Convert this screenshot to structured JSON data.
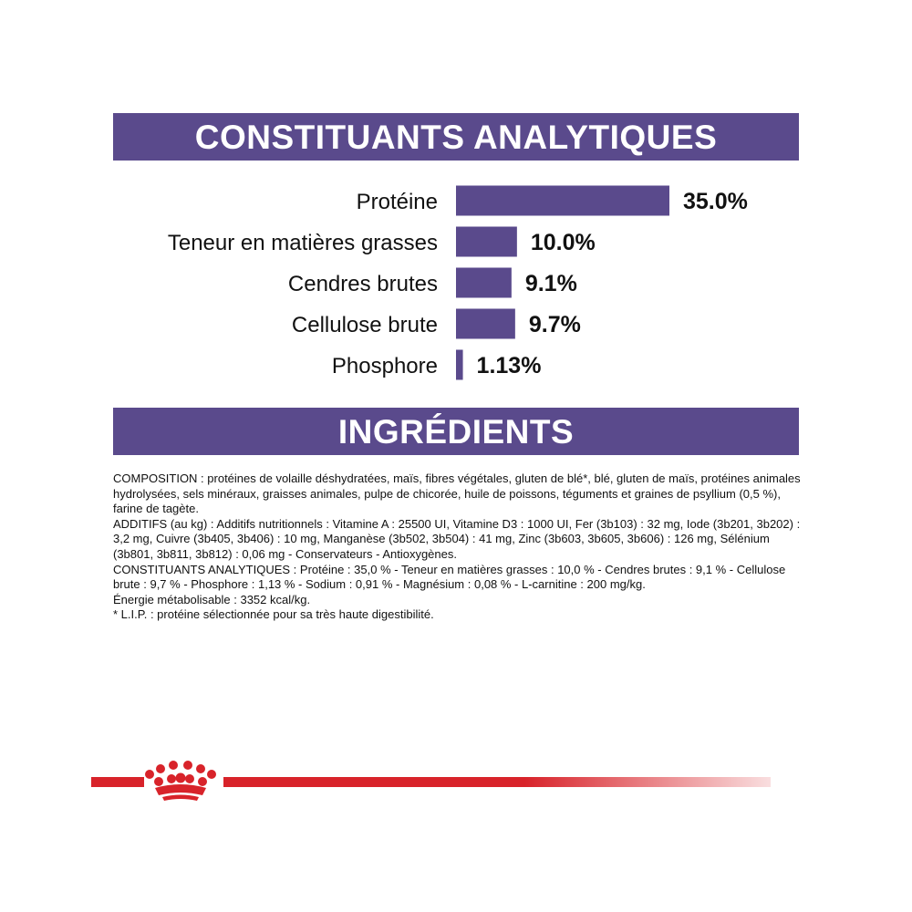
{
  "analytics_banner": "CONSTITUANTS ANALYTIQUES",
  "ingredients_banner": "INGRÉDIENTS",
  "colors": {
    "accent": "#5a4a8c",
    "brand_red": "#d8232a"
  },
  "chart_data": {
    "type": "bar",
    "orientation": "horizontal",
    "title": "",
    "xlabel": "",
    "ylabel": "",
    "categories": [
      "Protéine",
      "Teneur en matières grasses",
      "Cendres brutes",
      "Cellulose brute",
      "Phosphore"
    ],
    "values": [
      35.0,
      10.0,
      9.1,
      9.7,
      1.13
    ],
    "value_labels": [
      "35.0%",
      "10.0%",
      "9.1%",
      "9.7%",
      "1.13%"
    ],
    "xlim": [
      0,
      35
    ],
    "grid": false,
    "legend": "none"
  },
  "ingredients": {
    "paragraphs": [
      "COMPOSITION : protéines de volaille déshydratées, maïs, fibres végétales, gluten de blé*, blé, gluten de maïs, protéines animales hydrolysées, sels minéraux, graisses animales, pulpe de chicorée, huile de poissons, téguments et graines de psyllium (0,5 %), farine de tagète.",
      "ADDITIFS (au kg) : Additifs nutritionnels : Vitamine A : 25500 UI, Vitamine D3 : 1000 UI, Fer (3b103) : 32 mg, Iode (3b201, 3b202) : 3,2 mg, Cuivre (3b405, 3b406) : 10 mg, Manganèse (3b502, 3b504) : 41 mg, Zinc (3b603, 3b605, 3b606) : 126 mg, Sélénium (3b801, 3b811, 3b812) : 0,06 mg - Conservateurs - Antioxygènes.",
      "CONSTITUANTS ANALYTIQUES : Protéine : 35,0 % - Teneur en matières grasses : 10,0 % - Cendres brutes : 9,1 % - Cellulose brute : 9,7 % - Phosphore : 1,13 % - Sodium : 0,91 % - Magnésium : 0,08 % - L-carnitine : 200 mg/kg.",
      "Énergie métabolisable : 3352 kcal/kg.",
      "* L.I.P. : protéine sélectionnée pour sa très haute digestibilité."
    ]
  },
  "footer": {
    "logo_icon": "crown-icon"
  }
}
